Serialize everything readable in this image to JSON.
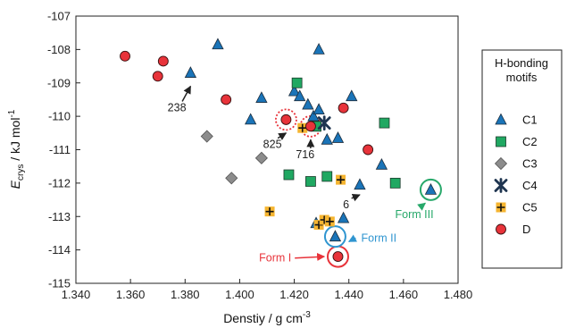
{
  "chart_data": {
    "type": "scatter",
    "xlabel": "Denstiy / g cm",
    "xlabel_sup": "-3",
    "ylabel_main": "E",
    "ylabel_sub": "crys",
    "ylabel_rest": " / kJ mol",
    "ylabel_sup": "-1",
    "xlim": [
      1.34,
      1.48
    ],
    "ylim": [
      -115,
      -107
    ],
    "xticks": [
      "1.340",
      "1.360",
      "1.380",
      "1.400",
      "1.420",
      "1.440",
      "1.460",
      "1.480"
    ],
    "yticks": [
      "-107",
      "-108",
      "-109",
      "-110",
      "-111",
      "-112",
      "-113",
      "-114",
      "-115"
    ],
    "grid": false,
    "legend": {
      "title_line1": "H-bonding",
      "title_line2": "motifs",
      "position": "right"
    },
    "colors": {
      "C1": "#1a74b8",
      "C2": "#20a862",
      "C3": "#8c8c8c",
      "C4": "#1f3550",
      "C5": "#f6b530",
      "D": "#e8333a",
      "form_I": "#e8333a",
      "form_II": "#2f95d0",
      "form_III": "#27a86a"
    },
    "series": [
      {
        "name": "C1",
        "marker": "triangle",
        "points": [
          [
            1.382,
            -108.7
          ],
          [
            1.392,
            -107.85
          ],
          [
            1.404,
            -110.1
          ],
          [
            1.408,
            -109.45
          ],
          [
            1.42,
            -109.25
          ],
          [
            1.422,
            -109.4
          ],
          [
            1.425,
            -109.65
          ],
          [
            1.429,
            -108.0
          ],
          [
            1.427,
            -110.0
          ],
          [
            1.429,
            -109.8
          ],
          [
            1.432,
            -110.7
          ],
          [
            1.436,
            -110.65
          ],
          [
            1.441,
            -109.4
          ],
          [
            1.444,
            -112.05
          ],
          [
            1.452,
            -111.45
          ],
          [
            1.438,
            -113.05
          ],
          [
            1.428,
            -113.2
          ],
          [
            1.435,
            -113.6
          ],
          [
            1.47,
            -112.2
          ]
        ]
      },
      {
        "name": "C2",
        "marker": "square",
        "points": [
          [
            1.421,
            -109.0
          ],
          [
            1.418,
            -111.75
          ],
          [
            1.426,
            -111.95
          ],
          [
            1.432,
            -111.8
          ],
          [
            1.428,
            -110.3
          ],
          [
            1.453,
            -110.2
          ],
          [
            1.457,
            -112.0
          ]
        ]
      },
      {
        "name": "C3",
        "marker": "diamond",
        "points": [
          [
            1.388,
            -110.6
          ],
          [
            1.397,
            -111.85
          ],
          [
            1.408,
            -111.25
          ]
        ]
      },
      {
        "name": "C4",
        "marker": "star",
        "points": [
          [
            1.431,
            -110.2
          ]
        ]
      },
      {
        "name": "C5",
        "marker": "plus",
        "points": [
          [
            1.411,
            -112.85
          ],
          [
            1.423,
            -110.35
          ],
          [
            1.429,
            -113.25
          ],
          [
            1.431,
            -113.1
          ],
          [
            1.433,
            -113.15
          ],
          [
            1.437,
            -111.9
          ]
        ]
      },
      {
        "name": "D",
        "marker": "circle",
        "points": [
          [
            1.358,
            -108.2
          ],
          [
            1.37,
            -108.8
          ],
          [
            1.372,
            -108.35
          ],
          [
            1.395,
            -109.5
          ],
          [
            1.417,
            -110.1
          ],
          [
            1.426,
            -110.3
          ],
          [
            1.438,
            -109.75
          ],
          [
            1.447,
            -111.0
          ],
          [
            1.436,
            -114.2
          ]
        ]
      }
    ],
    "annotations": [
      {
        "text": "238",
        "x": 1.377,
        "y": -109.85,
        "color": "#222222",
        "arrow_to": [
          1.382,
          -109.1
        ]
      },
      {
        "text": "825",
        "x": 1.412,
        "y": -110.95,
        "color": "#222222",
        "arrow_to": [
          1.417,
          -110.5
        ]
      },
      {
        "text": "716",
        "x": 1.424,
        "y": -111.25,
        "color": "#222222",
        "arrow_to": [
          1.426,
          -110.7
        ]
      },
      {
        "text": "6",
        "x": 1.439,
        "y": -112.75,
        "color": "#222222",
        "arrow_to": [
          1.444,
          -112.35
        ]
      },
      {
        "text": "Form III",
        "x": 1.464,
        "y": -113.05,
        "color": "#27a86a",
        "arrow_to": [
          1.468,
          -112.6
        ]
      },
      {
        "text": "Form II",
        "x": 1.451,
        "y": -113.75,
        "color": "#2f95d0",
        "arrow_to": [
          1.44,
          -113.75
        ]
      },
      {
        "text": "Form I",
        "x": 1.413,
        "y": -114.35,
        "color": "#e8333a",
        "arrow_to": [
          1.431,
          -114.2
        ]
      }
    ],
    "highlights": [
      {
        "label": "Form I",
        "x": 1.436,
        "y": -114.2,
        "style": "solid",
        "color": "#e8333a"
      },
      {
        "label": "Form II",
        "x": 1.435,
        "y": -113.6,
        "style": "solid",
        "color": "#2f95d0"
      },
      {
        "label": "Form III",
        "x": 1.47,
        "y": -112.2,
        "style": "solid",
        "color": "#27a86a"
      },
      {
        "label": "825",
        "x": 1.417,
        "y": -110.1,
        "style": "dotted",
        "color": "#e8333a"
      },
      {
        "label": "716",
        "x": 1.426,
        "y": -110.3,
        "style": "dotted",
        "color": "#e8333a"
      }
    ]
  }
}
